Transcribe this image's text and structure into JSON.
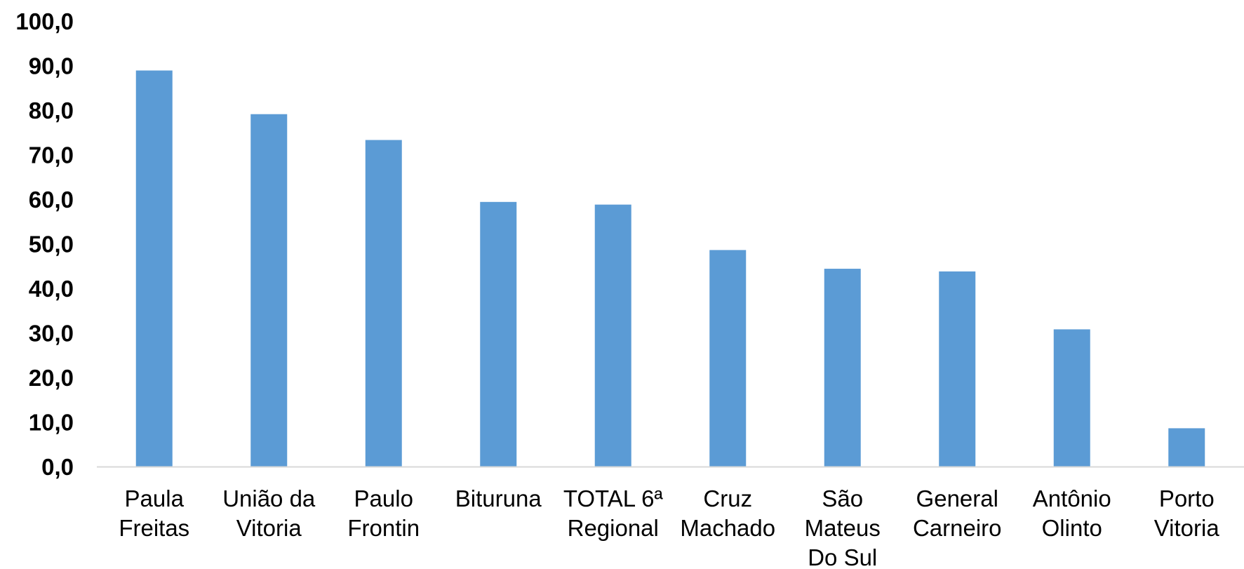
{
  "chart_data": {
    "type": "bar",
    "categories": [
      [
        "Paula",
        "Freitas"
      ],
      [
        "União da",
        "Vitoria"
      ],
      [
        "Paulo",
        "Frontin"
      ],
      [
        "Bituruna"
      ],
      [
        "TOTAL 6ª",
        "Regional"
      ],
      [
        "Cruz",
        "Machado"
      ],
      [
        "São",
        "Mateus",
        "Do Sul"
      ],
      [
        "General",
        "Carneiro"
      ],
      [
        "Antônio",
        "Olinto"
      ],
      [
        "Porto",
        "Vitoria"
      ]
    ],
    "values": [
      88.9,
      79.1,
      73.3,
      59.4,
      58.8,
      48.6,
      44.4,
      43.8,
      30.8,
      8.6
    ],
    "ylim": [
      0,
      100
    ],
    "yticks": [
      "0,0",
      "10,0",
      "20,0",
      "30,0",
      "40,0",
      "50,0",
      "60,0",
      "70,0",
      "80,0",
      "90,0",
      "100,0"
    ],
    "grid": false,
    "bar_color": "#5b9bd5",
    "axis_color": "#d9d9d9"
  }
}
